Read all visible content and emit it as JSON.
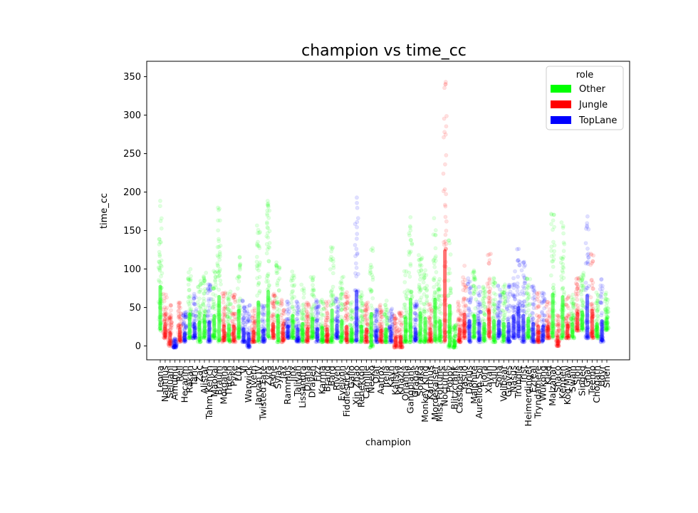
{
  "chart_data": {
    "type": "scatter",
    "title": "champion vs time_cc",
    "xlabel": "champion",
    "ylabel": "time_cc",
    "ylim": [
      -18,
      370
    ],
    "yticks": [
      0,
      50,
      100,
      150,
      200,
      250,
      300,
      350
    ],
    "grid": false,
    "legend": {
      "title": "role",
      "placement": "top-right",
      "entries": [
        {
          "name": "Other",
          "color": "#00ff00"
        },
        {
          "name": "Jungle",
          "color": "#ff0000"
        },
        {
          "name": "TopLane",
          "color": "#0000ff"
        }
      ]
    },
    "categories": [
      "Leona",
      "Nautilus",
      "Sejuani",
      "Amumu",
      "Rell",
      "Hecarim",
      "Rakan",
      "Taric",
      "Zac",
      "Alistar",
      "Tahm Kench",
      "Maokai",
      "Braum",
      "Morgana",
      "Thresh",
      "Pyke",
      "Lux",
      "Vi",
      "Warwick",
      "Ivern",
      "Jarvan IV",
      "Twisted Fate",
      "Zyra",
      "Ashe",
      "Sylas",
      "Jax",
      "Rammus",
      "Jinx",
      "Taliyah",
      "Lissandra",
      "Diana",
      "Draven",
      "Fizz",
      "Karma",
      "Brand",
      "Bard",
      "Riven",
      "Evelynn",
      "Fiddlesticks",
      "Galio",
      "Xin Zhao",
      "Renekton",
      "Camille",
      "Neeko",
      "Olaf",
      "Aatrox",
      "Irelia",
      "Kayn",
      "Kalista",
      "Khazix",
      "Orianna",
      "Gangplank",
      "Gragas",
      "Soraka",
      "Monkey King",
      "Karthus",
      "Mordekaiser",
      "Miss Fortune",
      "Nocturne",
      "Poppy",
      "Blitzcrank",
      "Cassiopeia",
      "Yasuo",
      "Darius",
      "Malphite",
      "Aurelion Sol",
      "Fiora",
      "Xayah",
      "Lulu",
      "Sona",
      "Volibear",
      "Graves",
      "Nasus",
      "Trundle",
      "Trist",
      "Heimerdinger",
      "Ezreal",
      "Tryndamere",
      "Wukong",
      "Kled",
      "Malzahar",
      "Shaco",
      "Kennen",
      "Kog'Maw",
      "Swain",
      "Sion",
      "Singed",
      "Gnar",
      "Teemo",
      "Chogath",
      "Udyr",
      "Shen"
    ],
    "series": [
      {
        "name": "Other",
        "color": "#00ff00"
      },
      {
        "name": "Jungle",
        "color": "#ff0000"
      },
      {
        "name": "TopLane",
        "color": "#0000ff"
      }
    ],
    "groups": [
      {
        "x": "Leona",
        "role": "Other",
        "min": 20,
        "max": 190
      },
      {
        "x": "Nautilus",
        "role": "Jungle",
        "min": 10,
        "max": 70
      },
      {
        "x": "Sejuani",
        "role": "Jungle",
        "min": 0,
        "max": 55
      },
      {
        "x": "Amumu",
        "role": "TopLane",
        "min": -2,
        "max": 10
      },
      {
        "x": "Rell",
        "role": "Jungle",
        "min": 5,
        "max": 60
      },
      {
        "x": "Hecarim",
        "role": "TopLane",
        "min": 5,
        "max": 45
      },
      {
        "x": "Rakan",
        "role": "Other",
        "min": 10,
        "max": 105
      },
      {
        "x": "Taric",
        "role": "TopLane",
        "min": 10,
        "max": 70
      },
      {
        "x": "Zac",
        "role": "Other",
        "min": 5,
        "max": 85
      },
      {
        "x": "Alistar",
        "role": "Other",
        "min": 10,
        "max": 100
      },
      {
        "x": "Tahm Kench",
        "role": "TopLane",
        "min": 5,
        "max": 85
      },
      {
        "x": "Maokai",
        "role": "Other",
        "min": 10,
        "max": 100
      },
      {
        "x": "Braum",
        "role": "Other",
        "min": 5,
        "max": 180
      },
      {
        "x": "Morgana",
        "role": "Jungle",
        "min": 5,
        "max": 70
      },
      {
        "x": "Thresh",
        "role": "Other",
        "min": 5,
        "max": 75
      },
      {
        "x": "Pyke",
        "role": "Jungle",
        "min": 5,
        "max": 70
      },
      {
        "x": "Lux",
        "role": "Other",
        "min": 10,
        "max": 120
      },
      {
        "x": "Vi",
        "role": "TopLane",
        "min": 5,
        "max": 60
      },
      {
        "x": "Warwick",
        "role": "TopLane",
        "min": -2,
        "max": 55
      },
      {
        "x": "Ivern",
        "role": "Jungle",
        "min": 5,
        "max": 50
      },
      {
        "x": "Jarvan IV",
        "role": "Other",
        "min": 5,
        "max": 160
      },
      {
        "x": "Twisted Fate",
        "role": "TopLane",
        "min": 5,
        "max": 55
      },
      {
        "x": "Zyra",
        "role": "Other",
        "min": 10,
        "max": 190
      },
      {
        "x": "Ashe",
        "role": "Jungle",
        "min": 10,
        "max": 70
      },
      {
        "x": "Sylas",
        "role": "Other",
        "min": 5,
        "max": 110
      },
      {
        "x": "Jax",
        "role": "Jungle",
        "min": 5,
        "max": 60
      },
      {
        "x": "Rammus",
        "role": "TopLane",
        "min": 10,
        "max": 60
      },
      {
        "x": "Jinx",
        "role": "Other",
        "min": 10,
        "max": 100
      },
      {
        "x": "Taliyah",
        "role": "TopLane",
        "min": 5,
        "max": 60
      },
      {
        "x": "Lissandra",
        "role": "Other",
        "min": 5,
        "max": 80
      },
      {
        "x": "Diana",
        "role": "Jungle",
        "min": 5,
        "max": 60
      },
      {
        "x": "Draven",
        "role": "Other",
        "min": 10,
        "max": 90
      },
      {
        "x": "Fizz",
        "role": "TopLane",
        "min": 5,
        "max": 60
      },
      {
        "x": "Karma",
        "role": "Other",
        "min": 5,
        "max": 65
      },
      {
        "x": "Brand",
        "role": "Jungle",
        "min": 5,
        "max": 60
      },
      {
        "x": "Bard",
        "role": "Other",
        "min": 5,
        "max": 130
      },
      {
        "x": "Riven",
        "role": "TopLane",
        "min": 10,
        "max": 65
      },
      {
        "x": "Evelynn",
        "role": "Other",
        "min": 5,
        "max": 90
      },
      {
        "x": "Fiddlesticks",
        "role": "Jungle",
        "min": 5,
        "max": 70
      },
      {
        "x": "Galio",
        "role": "Other",
        "min": 5,
        "max": 60
      },
      {
        "x": "Xin Zhao",
        "role": "TopLane",
        "min": 5,
        "max": 200
      },
      {
        "x": "Renekton",
        "role": "Other",
        "min": 5,
        "max": 70
      },
      {
        "x": "Camille",
        "role": "Jungle",
        "min": 5,
        "max": 60
      },
      {
        "x": "Neeko",
        "role": "Other",
        "min": -2,
        "max": 130
      },
      {
        "x": "Olaf",
        "role": "TopLane",
        "min": 5,
        "max": 50
      },
      {
        "x": "Aatrox",
        "role": "Jungle",
        "min": 5,
        "max": 55
      },
      {
        "x": "Irelia",
        "role": "Other",
        "min": 5,
        "max": 60
      },
      {
        "x": "Kayn",
        "role": "TopLane",
        "min": 5,
        "max": 50
      },
      {
        "x": "Kalista",
        "role": "Jungle",
        "min": -2,
        "max": 40
      },
      {
        "x": "Khazix",
        "role": "Jungle",
        "min": -2,
        "max": 45
      },
      {
        "x": "Orianna",
        "role": "Other",
        "min": 5,
        "max": 100
      },
      {
        "x": "Gangplank",
        "role": "Other",
        "min": 5,
        "max": 170
      },
      {
        "x": "Gragas",
        "role": "TopLane",
        "min": 5,
        "max": 60
      },
      {
        "x": "Soraka",
        "role": "Other",
        "min": 5,
        "max": 120
      },
      {
        "x": "Monkey King",
        "role": "Other",
        "min": 5,
        "max": 100
      },
      {
        "x": "Karthus",
        "role": "Jungle",
        "min": 5,
        "max": 60
      },
      {
        "x": "Mordekaiser",
        "role": "Other",
        "min": 5,
        "max": 170
      },
      {
        "x": "Miss Fortune",
        "role": "Other",
        "min": 5,
        "max": 90
      },
      {
        "x": "Nocturne",
        "role": "Jungle",
        "min": 5,
        "max": 350
      },
      {
        "x": "Poppy",
        "role": "Other",
        "min": -2,
        "max": 160
      },
      {
        "x": "Blitzcrank",
        "role": "Other",
        "min": -2,
        "max": 30
      },
      {
        "x": "Cassiopeia",
        "role": "Jungle",
        "min": 5,
        "max": 60
      },
      {
        "x": "Yasuo",
        "role": "Jungle",
        "min": 10,
        "max": 105
      },
      {
        "x": "Darius",
        "role": "TopLane",
        "min": 5,
        "max": 90
      },
      {
        "x": "Malphite",
        "role": "Other",
        "min": 10,
        "max": 100
      },
      {
        "x": "Aurelion Sol",
        "role": "TopLane",
        "min": 5,
        "max": 80
      },
      {
        "x": "Fiora",
        "role": "Other",
        "min": 5,
        "max": 80
      },
      {
        "x": "Xayah",
        "role": "Jungle",
        "min": 10,
        "max": 120
      },
      {
        "x": "Lulu",
        "role": "Other",
        "min": 5,
        "max": 90
      },
      {
        "x": "Sona",
        "role": "TopLane",
        "min": 10,
        "max": 80
      },
      {
        "x": "Volibear",
        "role": "Other",
        "min": 5,
        "max": 80
      },
      {
        "x": "Graves",
        "role": "TopLane",
        "min": 5,
        "max": 80
      },
      {
        "x": "Nasus",
        "role": "TopLane",
        "min": 10,
        "max": 100
      },
      {
        "x": "Trundle",
        "role": "TopLane",
        "min": 10,
        "max": 130
      },
      {
        "x": "Trist",
        "role": "TopLane",
        "min": 5,
        "max": 110
      },
      {
        "x": "Heimerdinger",
        "role": "Other",
        "min": 10,
        "max": 90
      },
      {
        "x": "Ezreal",
        "role": "TopLane",
        "min": 5,
        "max": 80
      },
      {
        "x": "Tryndamere",
        "role": "Jungle",
        "min": 5,
        "max": 70
      },
      {
        "x": "Wukong",
        "role": "TopLane",
        "min": 5,
        "max": 70
      },
      {
        "x": "Kled",
        "role": "Jungle",
        "min": 10,
        "max": 60
      },
      {
        "x": "Malzahar",
        "role": "Other",
        "min": 10,
        "max": 180
      },
      {
        "x": "Shaco",
        "role": "Jungle",
        "min": 0,
        "max": 40
      },
      {
        "x": "Kennen",
        "role": "Other",
        "min": 10,
        "max": 170
      },
      {
        "x": "Kog'Maw",
        "role": "Jungle",
        "min": 10,
        "max": 65
      },
      {
        "x": "Swain",
        "role": "Other",
        "min": 10,
        "max": 70
      },
      {
        "x": "Sion",
        "role": "Jungle",
        "min": 20,
        "max": 90
      },
      {
        "x": "Singed",
        "role": "Other",
        "min": 20,
        "max": 95
      },
      {
        "x": "Gnar",
        "role": "TopLane",
        "min": 10,
        "max": 175
      },
      {
        "x": "Teemo",
        "role": "Jungle",
        "min": 10,
        "max": 120
      },
      {
        "x": "Chogath",
        "role": "Other",
        "min": 10,
        "max": 70
      },
      {
        "x": "Udyr",
        "role": "TopLane",
        "min": 5,
        "max": 90
      },
      {
        "x": "Shen",
        "role": "Other",
        "min": 20,
        "max": 70
      }
    ]
  }
}
